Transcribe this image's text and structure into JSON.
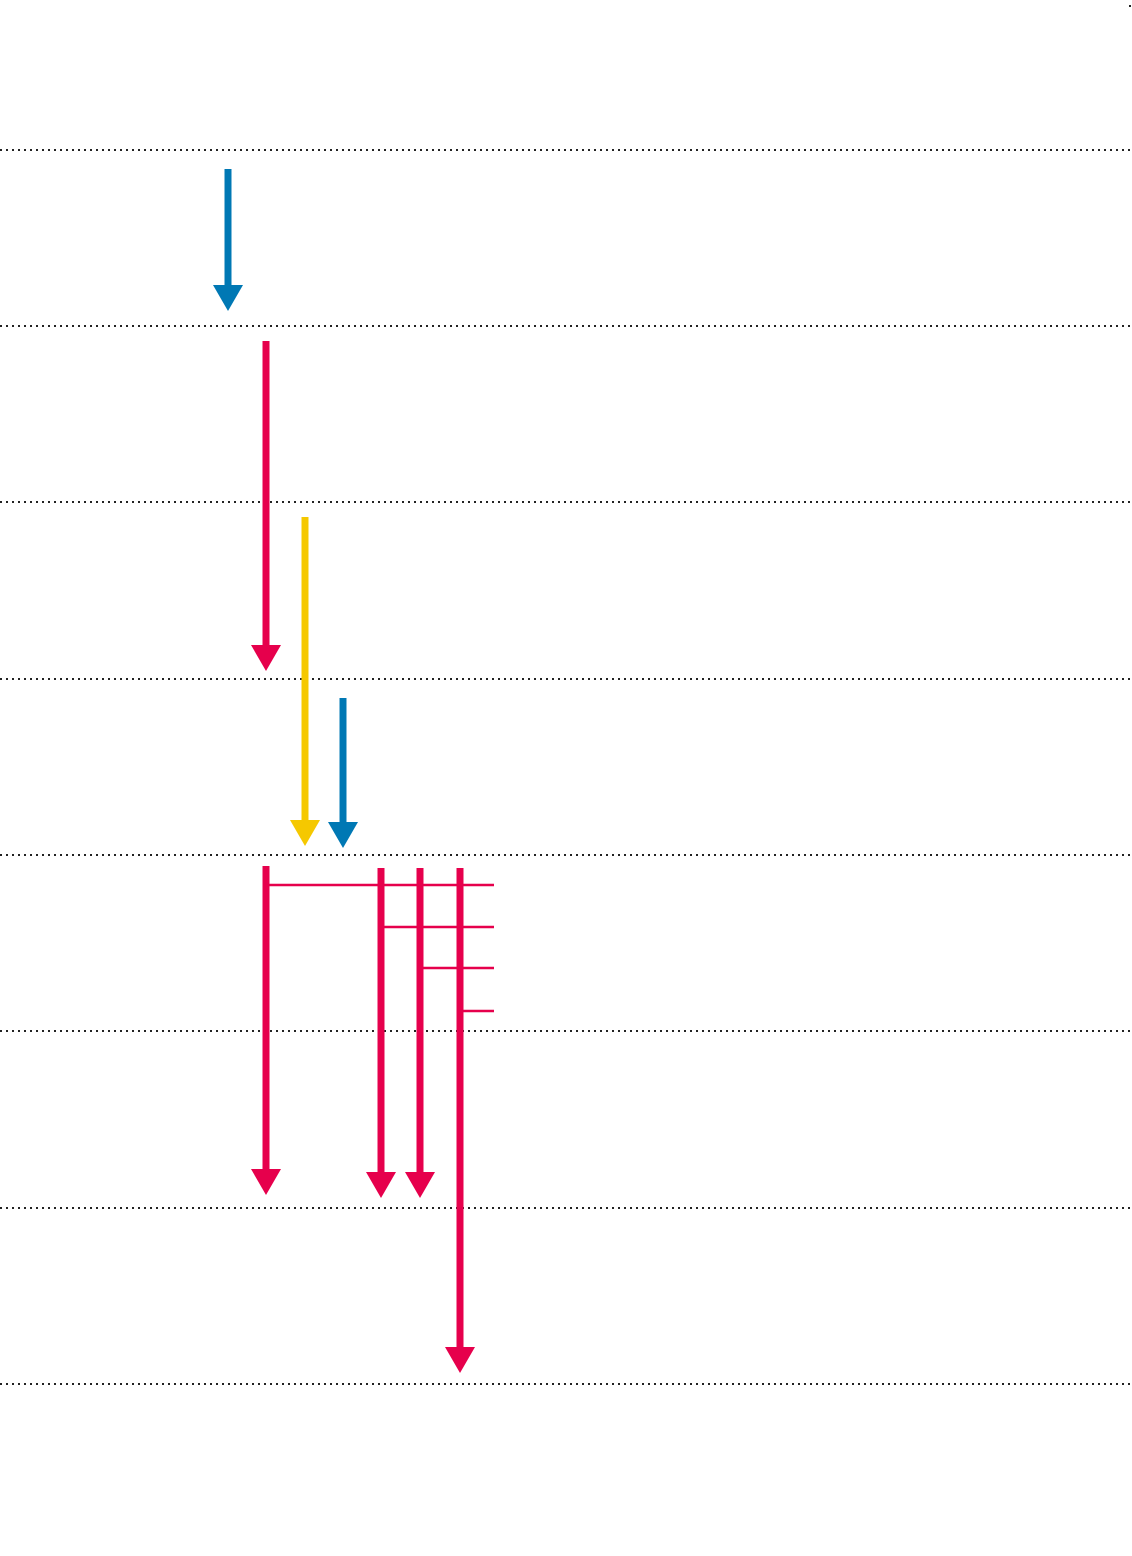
{
  "diagram": {
    "background": "#ffffff",
    "gridline_color": "#222222",
    "row_count": 8,
    "colors": {
      "blue": "#0078b4",
      "red": "#e6004c",
      "yellow": "#f5c800"
    },
    "arrows": [
      {
        "id": "blue-arrow-1",
        "color": "blue",
        "from_row": 0,
        "to_row": 1
      },
      {
        "id": "red-arrow-1",
        "color": "red",
        "from_row": 1,
        "to_row": 3
      },
      {
        "id": "yellow-arrow-1",
        "color": "yellow",
        "from_row": 2,
        "to_row": 4
      },
      {
        "id": "blue-arrow-2",
        "color": "blue",
        "from_row": 3,
        "to_row": 4
      },
      {
        "id": "red-arrow-2",
        "color": "red",
        "from_row": 4,
        "to_row": 6
      },
      {
        "id": "red-arrow-3",
        "color": "red",
        "from_row": 4,
        "to_row": 6
      },
      {
        "id": "red-arrow-4",
        "color": "red",
        "from_row": 4,
        "to_row": 6
      },
      {
        "id": "red-arrow-5",
        "color": "red",
        "from_row": 4,
        "to_row": 7
      }
    ],
    "branch_color": "red"
  }
}
